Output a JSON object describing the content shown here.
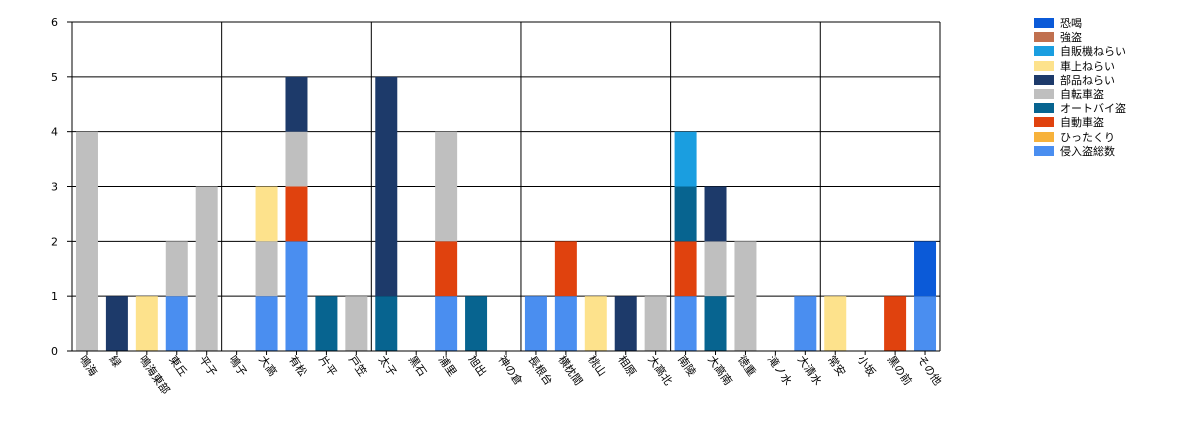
{
  "chart_data": {
    "type": "bar",
    "stacked": true,
    "categories": [
      "鳴海",
      "緑",
      "鳴海東部",
      "東丘",
      "平子",
      "鳴子",
      "大高",
      "有松",
      "片平",
      "戸笠",
      "太子",
      "黒石",
      "浦里",
      "旭出",
      "神の倉",
      "長根台",
      "横枕間",
      "桃山",
      "相原",
      "大高北",
      "南陵",
      "大高南",
      "徳重",
      "滝ノ水",
      "大清水",
      "常安",
      "小坂",
      "黒の前",
      "その他"
    ],
    "series": [
      {
        "name": "恐喝",
        "color": "#0b5ad8",
        "values": [
          0,
          0,
          0,
          0,
          0,
          0,
          0,
          0,
          0,
          0,
          0,
          0,
          0,
          0,
          0,
          0,
          0,
          0,
          0,
          0,
          0,
          0,
          0,
          0,
          0,
          0,
          0,
          0,
          1
        ]
      },
      {
        "name": "強盗",
        "color": "#c0704f",
        "values": [
          0,
          0,
          0,
          0,
          0,
          0,
          0,
          0,
          0,
          0,
          0,
          0,
          0,
          0,
          0,
          0,
          0,
          0,
          0,
          0,
          0,
          0,
          0,
          0,
          0,
          0,
          0,
          0,
          0
        ]
      },
      {
        "name": "自販機ねらい",
        "color": "#1a9ee0",
        "values": [
          0,
          0,
          0,
          0,
          0,
          0,
          0,
          0,
          0,
          0,
          0,
          0,
          0,
          0,
          0,
          0,
          0,
          0,
          0,
          0,
          1,
          0,
          0,
          0,
          0,
          0,
          0,
          0,
          0
        ]
      },
      {
        "name": "車上ねらい",
        "color": "#fde28c",
        "values": [
          0,
          0,
          1,
          0,
          0,
          0,
          1,
          0,
          0,
          0,
          0,
          0,
          0,
          0,
          0,
          0,
          0,
          1,
          0,
          0,
          0,
          0,
          0,
          0,
          0,
          1,
          0,
          0,
          0
        ]
      },
      {
        "name": "部品ねらい",
        "color": "#1d3a6a",
        "values": [
          0,
          1,
          0,
          0,
          0,
          0,
          0,
          1,
          0,
          0,
          4,
          0,
          0,
          0,
          0,
          0,
          0,
          0,
          1,
          0,
          0,
          1,
          0,
          0,
          0,
          0,
          0,
          0,
          0
        ]
      },
      {
        "name": "自転車盗",
        "color": "#bfbfbf",
        "values": [
          4,
          0,
          0,
          1,
          3,
          0,
          1,
          1,
          0,
          1,
          0,
          0,
          2,
          0,
          0,
          0,
          0,
          0,
          0,
          1,
          0,
          1,
          2,
          0,
          0,
          0,
          0,
          0,
          0
        ]
      },
      {
        "name": "オートバイ盗",
        "color": "#076490",
        "values": [
          0,
          0,
          0,
          0,
          0,
          0,
          0,
          0,
          1,
          0,
          1,
          0,
          0,
          1,
          0,
          0,
          0,
          0,
          0,
          0,
          1,
          1,
          0,
          0,
          0,
          0,
          0,
          0,
          0
        ]
      },
      {
        "name": "自動車盗",
        "color": "#e0420e",
        "values": [
          0,
          0,
          0,
          0,
          0,
          0,
          0,
          1,
          0,
          0,
          0,
          0,
          1,
          0,
          0,
          0,
          1,
          0,
          0,
          0,
          1,
          0,
          0,
          0,
          0,
          0,
          0,
          1,
          0
        ]
      },
      {
        "name": "ひったくり",
        "color": "#f7b23b",
        "values": [
          0,
          0,
          0,
          0,
          0,
          0,
          0,
          0,
          0,
          0,
          0,
          0,
          0,
          0,
          0,
          0,
          0,
          0,
          0,
          0,
          0,
          0,
          0,
          0,
          0,
          0,
          0,
          0,
          0
        ]
      },
      {
        "name": "侵入盗総数",
        "color": "#4a8ef0",
        "values": [
          0,
          0,
          0,
          1,
          0,
          0,
          1,
          2,
          0,
          0,
          0,
          0,
          1,
          0,
          0,
          1,
          1,
          0,
          0,
          0,
          1,
          0,
          0,
          0,
          1,
          0,
          0,
          0,
          1
        ]
      }
    ],
    "stack_order": [
      "侵入盗総数",
      "ひったくり",
      "自動車盗",
      "オートバイ盗",
      "自転車盗",
      "部品ねらい",
      "車上ねらい",
      "自販機ねらい",
      "強盗",
      "恐喝"
    ],
    "ylim": [
      0,
      6
    ],
    "yticks": [
      "0",
      "1",
      "2",
      "3",
      "4",
      "5",
      "6"
    ],
    "vertical_gridlines_every": 5,
    "grid": true,
    "legend_position": "top-right"
  }
}
